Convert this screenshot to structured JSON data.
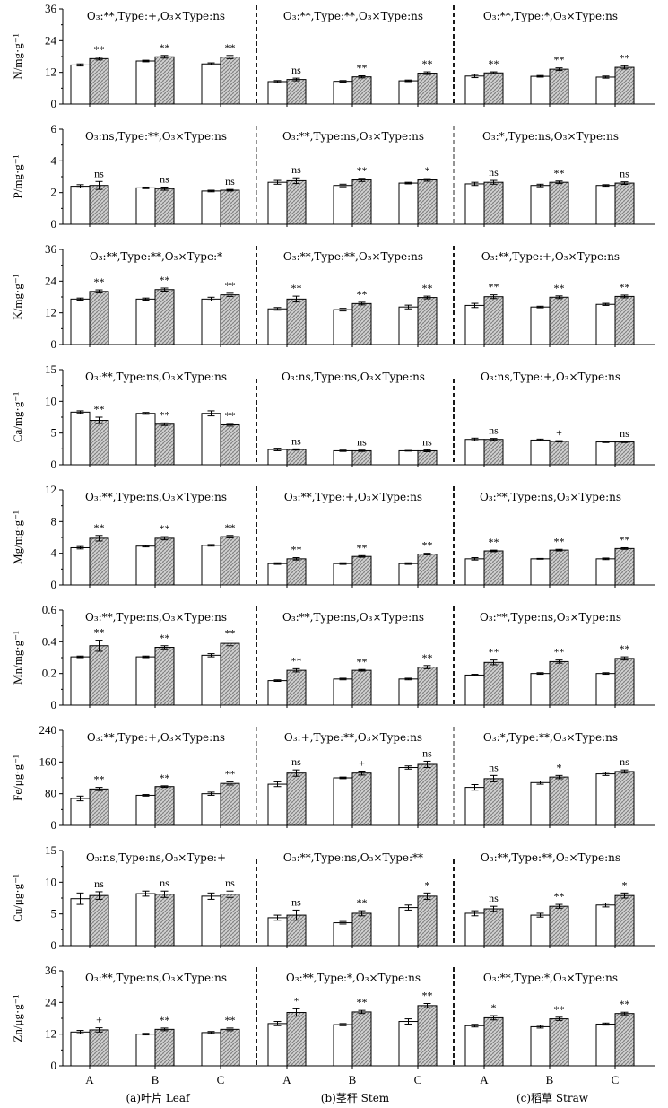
{
  "chart_data": {
    "type": "bar",
    "categories": [
      "A",
      "B",
      "C"
    ],
    "sections": [
      "(a)叶片 Leaf",
      "(b)茎秆 Stem",
      "(c)稻草 Straw"
    ],
    "series_colors": {
      "control": "#ffffff",
      "treatment": "#bdbdbd"
    },
    "panels": [
      {
        "ylabel": "N/mg·g⁻¹",
        "yticks": [
          0,
          12,
          24,
          36
        ],
        "ylim": [
          0,
          36
        ],
        "stats": [
          "O₃:**,Type:+,O₃×Type:ns",
          "O₃:**,Type:**,O₃×Type:ns",
          "O₃:**,Type:*,O₃×Type:ns"
        ],
        "groups": [
          [
            [
              14.8,
              0.4
            ],
            [
              17.2,
              0.5
            ],
            "**"
          ],
          [
            [
              16.3,
              0.3
            ],
            [
              17.9,
              0.5
            ],
            "**"
          ],
          [
            [
              15.2,
              0.4
            ],
            [
              17.8,
              0.6
            ],
            "**"
          ],
          [
            [
              8.5,
              0.4
            ],
            [
              9.3,
              0.5
            ],
            "ns"
          ],
          [
            [
              8.6,
              0.3
            ],
            [
              10.3,
              0.4
            ],
            "**"
          ],
          [
            [
              8.8,
              0.3
            ],
            [
              11.7,
              0.5
            ],
            "**"
          ],
          [
            [
              10.6,
              0.6
            ],
            [
              11.8,
              0.4
            ],
            "**"
          ],
          [
            [
              10.5,
              0.3
            ],
            [
              13.2,
              0.5
            ],
            "**"
          ],
          [
            [
              10.2,
              0.4
            ],
            [
              13.9,
              0.6
            ],
            "**"
          ]
        ]
      },
      {
        "ylabel": "P/mg·g⁻¹",
        "yticks": [
          0,
          2,
          4,
          6
        ],
        "ylim": [
          0,
          6
        ],
        "stats": [
          "O₃:ns,Type:**,O₃×Type:ns",
          "O₃:**,Type:ns,O₃×Type:ns",
          "O₃:*,Type:ns,O₃×Type:ns"
        ],
        "groups": [
          [
            [
              2.4,
              0.1
            ],
            [
              2.45,
              0.25
            ],
            "ns"
          ],
          [
            [
              2.3,
              0.05
            ],
            [
              2.25,
              0.1
            ],
            "ns"
          ],
          [
            [
              2.1,
              0.05
            ],
            [
              2.15,
              0.05
            ],
            "ns"
          ],
          [
            [
              2.65,
              0.12
            ],
            [
              2.75,
              0.18
            ],
            "ns"
          ],
          [
            [
              2.45,
              0.08
            ],
            [
              2.8,
              0.1
            ],
            "**"
          ],
          [
            [
              2.6,
              0.05
            ],
            [
              2.8,
              0.08
            ],
            "*"
          ],
          [
            [
              2.55,
              0.1
            ],
            [
              2.65,
              0.12
            ],
            "ns"
          ],
          [
            [
              2.45,
              0.08
            ],
            [
              2.65,
              0.08
            ],
            "**"
          ],
          [
            [
              2.45,
              0.05
            ],
            [
              2.6,
              0.08
            ],
            "ns"
          ]
        ]
      },
      {
        "ylabel": "K/mg·g⁻¹",
        "yticks": [
          0,
          12,
          24,
          36
        ],
        "ylim": [
          0,
          36
        ],
        "stats": [
          "O₃:**,Type:**,O₃×Type:*",
          "O₃:**,Type:**,O₃×Type:ns",
          "O₃:**,Type:+,O₃×Type:ns"
        ],
        "groups": [
          [
            [
              17.2,
              0.4
            ],
            [
              20.1,
              0.6
            ],
            "**"
          ],
          [
            [
              17.2,
              0.4
            ],
            [
              20.8,
              0.6
            ],
            "**"
          ],
          [
            [
              17.2,
              0.7
            ],
            [
              18.8,
              0.6
            ],
            "**"
          ],
          [
            [
              13.5,
              0.5
            ],
            [
              17.2,
              1.1
            ],
            "**"
          ],
          [
            [
              13.2,
              0.5
            ],
            [
              15.5,
              0.5
            ],
            "**"
          ],
          [
            [
              14.2,
              0.7
            ],
            [
              17.8,
              0.5
            ],
            "**"
          ],
          [
            [
              14.8,
              0.8
            ],
            [
              18.1,
              0.7
            ],
            "**"
          ],
          [
            [
              14.2,
              0.3
            ],
            [
              17.9,
              0.5
            ],
            "**"
          ],
          [
            [
              15.2,
              0.4
            ],
            [
              18.2,
              0.5
            ],
            "**"
          ]
        ]
      },
      {
        "ylabel": "Ca/mg·g⁻¹",
        "yticks": [
          0,
          5,
          10,
          15
        ],
        "ylim": [
          0,
          15
        ],
        "stats": [
          "O₃:**,Type:ns,O₃×Type:ns",
          "O₃:ns,Type:ns,O₃×Type:ns",
          "O₃:ns,Type:+,O₃×Type:ns"
        ],
        "groups": [
          [
            [
              8.3,
              0.2
            ],
            [
              7.0,
              0.5
            ],
            "**"
          ],
          [
            [
              8.1,
              0.15
            ],
            [
              6.4,
              0.2
            ],
            "**"
          ],
          [
            [
              8.1,
              0.4
            ],
            [
              6.3,
              0.2
            ],
            "**"
          ],
          [
            [
              2.4,
              0.2
            ],
            [
              2.4,
              0.1
            ],
            "ns"
          ],
          [
            [
              2.2,
              0.1
            ],
            [
              2.2,
              0.1
            ],
            "ns"
          ],
          [
            [
              2.2,
              0.05
            ],
            [
              2.2,
              0.15
            ],
            "ns"
          ],
          [
            [
              4.0,
              0.2
            ],
            [
              4.0,
              0.15
            ],
            "ns"
          ],
          [
            [
              3.9,
              0.15
            ],
            [
              3.7,
              0.1
            ],
            "+"
          ],
          [
            [
              3.6,
              0.1
            ],
            [
              3.6,
              0.1
            ],
            "ns"
          ]
        ]
      },
      {
        "ylabel": "Mg/mg·g⁻¹",
        "yticks": [
          0,
          4,
          8,
          12
        ],
        "ylim": [
          0,
          12
        ],
        "stats": [
          "O₃:**,Type:ns,O₃×Type:ns",
          "O₃:**,Type:+,O₃×Type:ns",
          "O₃:**,Type:ns,O₃×Type:ns"
        ],
        "groups": [
          [
            [
              4.7,
              0.15
            ],
            [
              5.9,
              0.35
            ],
            "**"
          ],
          [
            [
              4.9,
              0.1
            ],
            [
              5.9,
              0.2
            ],
            "**"
          ],
          [
            [
              5.0,
              0.1
            ],
            [
              6.1,
              0.15
            ],
            "**"
          ],
          [
            [
              2.7,
              0.1
            ],
            [
              3.3,
              0.15
            ],
            "**"
          ],
          [
            [
              2.7,
              0.1
            ],
            [
              3.6,
              0.1
            ],
            "**"
          ],
          [
            [
              2.7,
              0.1
            ],
            [
              3.9,
              0.1
            ],
            "**"
          ],
          [
            [
              3.3,
              0.15
            ],
            [
              4.3,
              0.1
            ],
            "**"
          ],
          [
            [
              3.3,
              0.05
            ],
            [
              4.4,
              0.1
            ],
            "**"
          ],
          [
            [
              3.3,
              0.1
            ],
            [
              4.6,
              0.1
            ],
            "**"
          ]
        ]
      },
      {
        "ylabel": "Mn/mg·g⁻¹",
        "yticks": [
          0,
          0.2,
          0.4,
          0.6
        ],
        "ylim": [
          0,
          0.6
        ],
        "stats": [
          "O₃:**,Type:ns,O₃×Type:ns",
          "O₃:**,Type:ns,O₃×Type:ns",
          "O₃:**,Type:ns,O₃×Type:ns"
        ],
        "groups": [
          [
            [
              0.305,
              0.005
            ],
            [
              0.375,
              0.035
            ],
            "**"
          ],
          [
            [
              0.305,
              0.005
            ],
            [
              0.365,
              0.01
            ],
            "**"
          ],
          [
            [
              0.315,
              0.01
            ],
            [
              0.39,
              0.015
            ],
            "**"
          ],
          [
            [
              0.155,
              0.005
            ],
            [
              0.22,
              0.01
            ],
            "**"
          ],
          [
            [
              0.165,
              0.005
            ],
            [
              0.22,
              0.005
            ],
            "**"
          ],
          [
            [
              0.165,
              0.005
            ],
            [
              0.24,
              0.01
            ],
            "**"
          ],
          [
            [
              0.19,
              0.005
            ],
            [
              0.27,
              0.015
            ],
            "**"
          ],
          [
            [
              0.2,
              0.005
            ],
            [
              0.275,
              0.01
            ],
            "**"
          ],
          [
            [
              0.2,
              0.005
            ],
            [
              0.295,
              0.01
            ],
            "**"
          ]
        ]
      },
      {
        "ylabel": "Fe/μg·g⁻¹",
        "yticks": [
          0,
          80,
          160,
          240
        ],
        "ylim": [
          0,
          240
        ],
        "stats": [
          "O₃:**,Type:+,O₃×Type:ns",
          "O₃:+,Type:**,O₃×Type:ns",
          "O₃:*,Type:**,O₃×Type:ns"
        ],
        "groups": [
          [
            [
              68,
              6
            ],
            [
              92,
              4
            ],
            "**"
          ],
          [
            [
              76,
              2
            ],
            [
              98,
              2
            ],
            "**"
          ],
          [
            [
              80,
              4
            ],
            [
              106,
              4
            ],
            "**"
          ],
          [
            [
              104,
              6
            ],
            [
              132,
              8
            ],
            "ns"
          ],
          [
            [
              120,
              2
            ],
            [
              132,
              5
            ],
            "+"
          ],
          [
            [
              146,
              4
            ],
            [
              154,
              8
            ],
            "ns"
          ],
          [
            [
              96,
              7
            ],
            [
              118,
              8
            ],
            "ns"
          ],
          [
            [
              108,
              4
            ],
            [
              122,
              4
            ],
            "*"
          ],
          [
            [
              130,
              4
            ],
            [
              136,
              4
            ],
            "ns"
          ]
        ]
      },
      {
        "ylabel": "Cu/μg·g⁻¹",
        "yticks": [
          0,
          5,
          10,
          15
        ],
        "ylim": [
          0,
          15
        ],
        "stats": [
          "O₃:ns,Type:ns,O₃×Type:+",
          "O₃:**,Type:ns,O₃×Type:**",
          "O₃:**,Type:**,O₃×Type:ns"
        ],
        "groups": [
          [
            [
              7.4,
              0.9
            ],
            [
              7.9,
              0.6
            ],
            "ns"
          ],
          [
            [
              8.2,
              0.4
            ],
            [
              8.1,
              0.5
            ],
            "ns"
          ],
          [
            [
              7.8,
              0.5
            ],
            [
              8.1,
              0.5
            ],
            "ns"
          ],
          [
            [
              4.4,
              0.4
            ],
            [
              4.8,
              0.8
            ],
            "ns"
          ],
          [
            [
              3.6,
              0.2
            ],
            [
              5.1,
              0.4
            ],
            "**"
          ],
          [
            [
              6.0,
              0.4
            ],
            [
              7.8,
              0.5
            ],
            "*"
          ],
          [
            [
              5.1,
              0.4
            ],
            [
              5.8,
              0.4
            ],
            "ns"
          ],
          [
            [
              4.8,
              0.3
            ],
            [
              6.2,
              0.3
            ],
            "**"
          ],
          [
            [
              6.4,
              0.3
            ],
            [
              7.9,
              0.4
            ],
            "*"
          ]
        ]
      },
      {
        "ylabel": "Zn/μg·g⁻¹",
        "yticks": [
          0,
          12,
          24,
          36
        ],
        "ylim": [
          0,
          36
        ],
        "stats": [
          "O₃:**,Type:ns,O₃×Type:ns",
          "O₃:**,Type:*,O₃×Type:ns",
          "O₃:**,Type:*,O₃×Type:ns"
        ],
        "groups": [
          [
            [
              12.8,
              0.6
            ],
            [
              13.6,
              0.8
            ],
            "+"
          ],
          [
            [
              12,
              0.3
            ],
            [
              13.8,
              0.5
            ],
            "**"
          ],
          [
            [
              12.6,
              0.4
            ],
            [
              13.8,
              0.5
            ],
            "**"
          ],
          [
            [
              16,
              0.8
            ],
            [
              20.2,
              1.4
            ],
            "*"
          ],
          [
            [
              15.6,
              0.4
            ],
            [
              20.4,
              0.6
            ],
            "**"
          ],
          [
            [
              16.8,
              1
            ],
            [
              22.8,
              0.8
            ],
            "**"
          ],
          [
            [
              15.2,
              0.5
            ],
            [
              18.2,
              0.8
            ],
            "*"
          ],
          [
            [
              14.8,
              0.5
            ],
            [
              17.8,
              0.6
            ],
            "**"
          ],
          [
            [
              15.8,
              0.4
            ],
            [
              19.8,
              0.5
            ],
            "**"
          ]
        ]
      }
    ]
  }
}
